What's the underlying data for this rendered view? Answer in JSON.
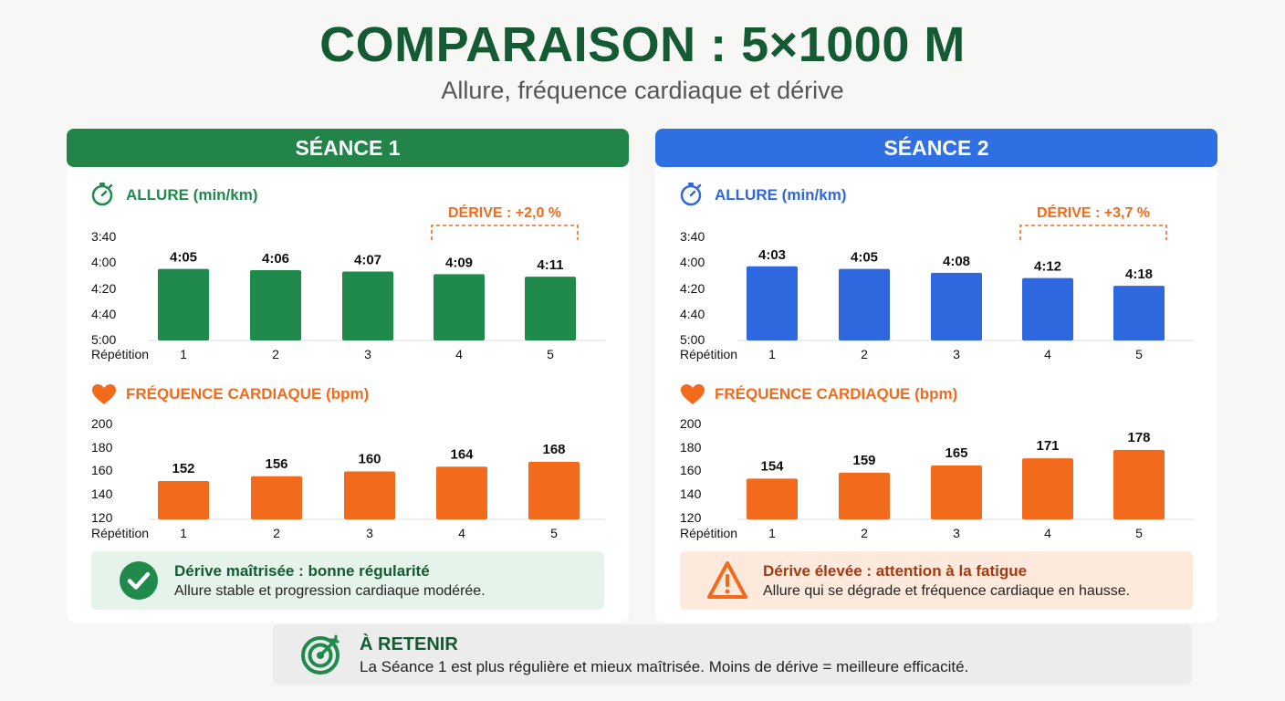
{
  "title": "COMPARAISON : 5×1000 M",
  "subtitle": "Allure, fréquence cardiaque et dérive",
  "colors": {
    "green": "#1f8a4c",
    "green_header": "#238449",
    "blue": "#2f67de",
    "blue_header": "#2f6fe4",
    "orange": "#f26b1d",
    "dark_green": "#145a32",
    "ok_bg": "#e6f3ea",
    "warn_bg": "#fdeadc",
    "warn_title": "#a33a12"
  },
  "sessions": [
    {
      "header": "SÉANCE 1",
      "pace_section_title": "ALLURE (min/km)",
      "pace_icon": "stopwatch-icon",
      "drift_label": "DÉRIVE : +2,0 %",
      "hr_section_title": "FRÉQUENCE CARDIAQUE (bpm)",
      "hr_icon": "heart-icon",
      "status_icon": "check-circle-icon",
      "status_title": "Dérive maîtrisée : bonne régularité",
      "status_text": "Allure stable et progression cardiaque modérée."
    },
    {
      "header": "SÉANCE 2",
      "pace_section_title": "ALLURE (min/km)",
      "pace_icon": "stopwatch-icon",
      "drift_label": "DÉRIVE : +3,7 %",
      "hr_section_title": "FRÉQUENCE CARDIAQUE (bpm)",
      "hr_icon": "heart-icon",
      "status_icon": "warning-icon",
      "status_title": "Dérive élevée : attention à la fatigue",
      "status_text": "Allure qui se dégrade et fréquence cardiaque en hausse."
    }
  ],
  "takeaway": {
    "icon": "target-icon",
    "title": "À RETENIR",
    "text": "La Séance 1 est plus régulière et mieux maîtrisée. Moins de dérive = meilleure efficacité."
  },
  "chart_data": [
    {
      "type": "bar",
      "title": "ALLURE (min/km)",
      "session": "SÉANCE 1",
      "xlabel": "Répétition",
      "categories": [
        "1",
        "2",
        "3",
        "4",
        "5"
      ],
      "values": [
        "4:05",
        "4:06",
        "4:07",
        "4:09",
        "4:11"
      ],
      "values_seconds_per_km": [
        245,
        246,
        247,
        249,
        251
      ],
      "y_ticks": [
        "3:40",
        "4:00",
        "4:20",
        "4:40",
        "5:00"
      ],
      "y_axis_inverted": true,
      "ylim": [
        300,
        220
      ],
      "annotation": "DÉRIVE : +2,0 %",
      "annotation_over_categories": [
        "4",
        "5"
      ]
    },
    {
      "type": "bar",
      "title": "FRÉQUENCE CARDIAQUE (bpm)",
      "session": "SÉANCE 1",
      "xlabel": "Répétition",
      "categories": [
        "1",
        "2",
        "3",
        "4",
        "5"
      ],
      "values": [
        152,
        156,
        160,
        164,
        168
      ],
      "y_ticks": [
        "200",
        "180",
        "160",
        "140",
        "120"
      ],
      "ylim": [
        120,
        200
      ]
    },
    {
      "type": "bar",
      "title": "ALLURE (min/km)",
      "session": "SÉANCE 2",
      "xlabel": "Répétition",
      "categories": [
        "1",
        "2",
        "3",
        "4",
        "5"
      ],
      "values": [
        "4:03",
        "4:05",
        "4:08",
        "4:12",
        "4:18"
      ],
      "values_seconds_per_km": [
        243,
        245,
        248,
        252,
        258
      ],
      "y_ticks": [
        "3:40",
        "4:00",
        "4:20",
        "4:40",
        "5:00"
      ],
      "y_axis_inverted": true,
      "ylim": [
        300,
        220
      ],
      "annotation": "DÉRIVE : +3,7 %",
      "annotation_over_categories": [
        "4",
        "5"
      ]
    },
    {
      "type": "bar",
      "title": "FRÉQUENCE CARDIAQUE (bpm)",
      "session": "SÉANCE 2",
      "xlabel": "Répétition",
      "categories": [
        "1",
        "2",
        "3",
        "4",
        "5"
      ],
      "values": [
        154,
        159,
        165,
        171,
        178
      ],
      "y_ticks": [
        "200",
        "180",
        "160",
        "140",
        "120"
      ],
      "ylim": [
        120,
        200
      ]
    }
  ]
}
